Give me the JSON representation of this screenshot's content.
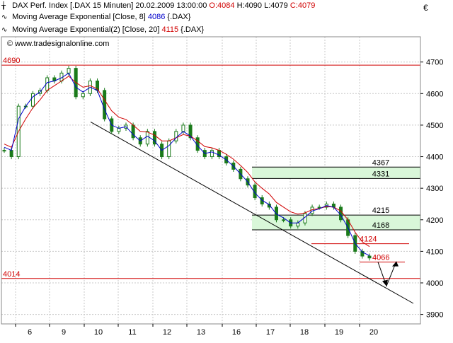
{
  "header": {
    "instrument": "DAX Perf. Index",
    "symbol": ".DAX",
    "interval": "15 Minuten",
    "date": "20.02.2009",
    "time": "13:00:00",
    "open_label": "O:",
    "open": "4084",
    "high_label": "H:",
    "high": "4090",
    "low_label": "L:",
    "low": "4079",
    "close_label": "C:",
    "close": "4079",
    "ma1_label": "Moving Average Exponential [Close, 8]",
    "ma1_value": "4086",
    "ma1_symbol": "{.DAX}",
    "ma2_label": "Moving Average Exponential(2) [Close, 20]",
    "ma2_value": "4115",
    "ma2_symbol": "{.DAX}",
    "watermark": "© www.tradesignalonline.com",
    "currency": "€"
  },
  "colors": {
    "candle": "#1a7a1a",
    "ma_fast": "#0000cc",
    "ma_slow": "#d00000",
    "level_line": "#d00000",
    "zone_fill": "#d9f7d9",
    "trendline": "#000000"
  },
  "chart_data": {
    "type": "line",
    "title": "DAX Perf. Index [.DAX 15 Minuten]",
    "ylim": [
      3870,
      4780
    ],
    "y_ticks": [
      3900,
      4000,
      4100,
      4200,
      4300,
      4400,
      4500,
      4600,
      4700
    ],
    "x_ticks": [
      "6",
      "9",
      "10",
      "11",
      "12",
      "13",
      "16",
      "17",
      "18",
      "19",
      "20"
    ],
    "series": [
      {
        "name": "DAX Perf. Index",
        "values": [
          4420,
          4400,
          4560,
          4560,
          4600,
          4610,
          4650,
          4640,
          4665,
          4680,
          4590,
          4600,
          4640,
          4610,
          4520,
          4480,
          4490,
          4500,
          4460,
          4440,
          4480,
          4440,
          4400,
          4450,
          4480,
          4500,
          4460,
          4420,
          4400,
          4420,
          4400,
          4380,
          4360,
          4330,
          4310,
          4270,
          4250,
          4240,
          4200,
          4200,
          4180,
          4190,
          4220,
          4240,
          4240,
          4250,
          4240,
          4200,
          4150,
          4100,
          4085,
          4079
        ]
      },
      {
        "name": "Moving Average Exponential [Close, 8]",
        "values": [
          4430,
          4420,
          4520,
          4560,
          4590,
          4605,
          4635,
          4640,
          4650,
          4665,
          4620,
          4605,
          4620,
          4610,
          4550,
          4500,
          4490,
          4495,
          4470,
          4450,
          4465,
          4450,
          4420,
          4435,
          4460,
          4480,
          4465,
          4435,
          4410,
          4415,
          4405,
          4390,
          4370,
          4345,
          4320,
          4285,
          4262,
          4248,
          4218,
          4206,
          4190,
          4190,
          4208,
          4228,
          4235,
          4245,
          4240,
          4215,
          4175,
          4125,
          4098,
          4086
        ]
      },
      {
        "name": "Moving Average Exponential(2) [Close, 20]",
        "values": [
          4440,
          4430,
          4480,
          4520,
          4555,
          4580,
          4610,
          4625,
          4640,
          4655,
          4635,
          4620,
          4625,
          4615,
          4580,
          4545,
          4525,
          4518,
          4500,
          4480,
          4478,
          4468,
          4450,
          4450,
          4460,
          4470,
          4465,
          4450,
          4432,
          4428,
          4420,
          4408,
          4392,
          4372,
          4350,
          4320,
          4300,
          4282,
          4255,
          4240,
          4225,
          4218,
          4222,
          4232,
          4236,
          4242,
          4240,
          4228,
          4200,
          4160,
          4130,
          4115
        ]
      }
    ],
    "horizontal_levels": [
      {
        "label": "4690",
        "value": 4690
      },
      {
        "label": "4124",
        "value": 4124
      },
      {
        "label": "4066",
        "value": 4066
      },
      {
        "label": "4014",
        "value": 4014
      }
    ],
    "zones": [
      {
        "upper_label": "4367",
        "lower_label": "4331",
        "upper": 4367,
        "lower": 4331
      },
      {
        "upper_label": "4215",
        "lower_label": "4168",
        "upper": 4215,
        "lower": 4168
      }
    ],
    "trendline": {
      "from": [
        "10",
        4510
      ],
      "to": [
        "20+",
        3935
      ]
    },
    "projection": {
      "points": [
        4066,
        3990,
        4068
      ]
    },
    "grid": true
  }
}
